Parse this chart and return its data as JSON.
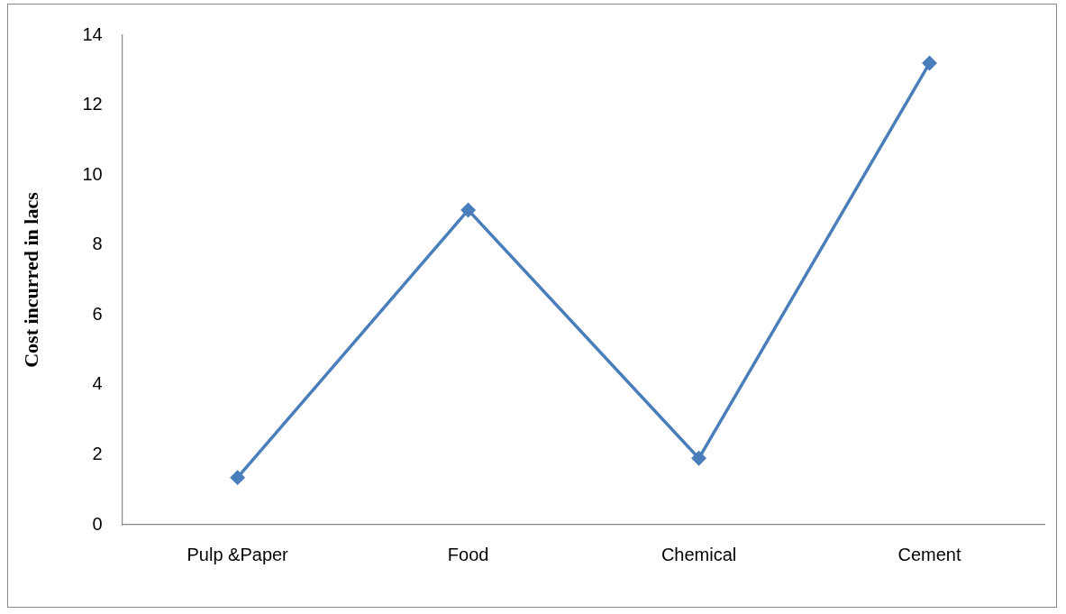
{
  "chart_data": {
    "type": "line",
    "ylabel": "Cost incurred in lacs",
    "categories": [
      "Pulp &Paper",
      "Food",
      "Chemical",
      "Cement"
    ],
    "series": [
      {
        "color": "#4a7ebb",
        "values": [
          1.35,
          9.0,
          1.9,
          13.2
        ]
      }
    ],
    "ylim": [
      0,
      14
    ],
    "yticks": [
      0,
      2,
      4,
      6,
      8,
      10,
      12,
      14
    ],
    "grid": false,
    "legend": false,
    "marker": "diamond",
    "line_style": "solid"
  }
}
